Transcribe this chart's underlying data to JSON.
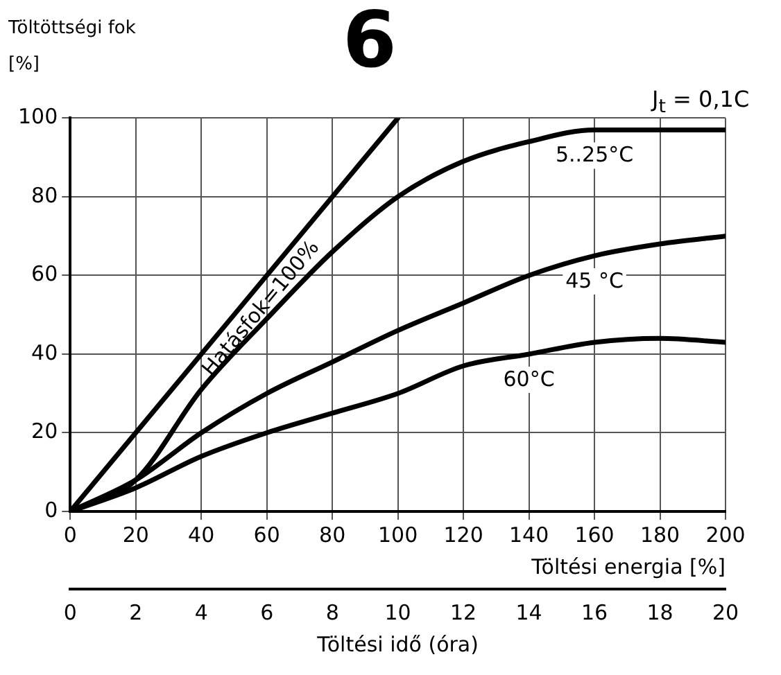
{
  "chart_data": {
    "type": "line",
    "title": "6",
    "ylabel": "Töltöttségi fok [%]",
    "xlabel": "Töltési energia [%]",
    "x2label": "Töltési idő (óra)",
    "annotations": [
      "J$_{t}$ = 0,1C"
    ],
    "x": [
      0,
      20,
      40,
      60,
      80,
      100,
      120,
      140,
      160,
      180,
      200
    ],
    "series": [
      {
        "name": "Hatásfok=100%",
        "color": "#000000",
        "x": [
          0,
          100
        ],
        "values": [
          0,
          100
        ]
      },
      {
        "name": "5..25°C",
        "color": "#000000",
        "values": [
          0,
          8,
          31,
          49,
          66,
          80,
          89,
          94,
          97,
          97,
          97
        ]
      },
      {
        "name": "45 °C",
        "color": "#000000",
        "values": [
          0,
          8,
          20,
          30,
          38,
          46,
          53,
          60,
          65,
          68,
          70
        ]
      },
      {
        "name": "60°C",
        "color": "#000000",
        "values": [
          0,
          6,
          14,
          20,
          25,
          30,
          37,
          40,
          43,
          44,
          43
        ]
      }
    ],
    "xlim": [
      0,
      200
    ],
    "xticks": [
      0,
      20,
      40,
      60,
      80,
      100,
      120,
      140,
      160,
      180,
      200
    ],
    "x2lim": [
      0,
      20
    ],
    "x2ticks": [
      0,
      2,
      4,
      6,
      8,
      10,
      12,
      14,
      16,
      18,
      20
    ],
    "ylim": [
      0,
      100
    ],
    "yticks": [
      0,
      20,
      40,
      60,
      80,
      100
    ],
    "grid": true,
    "legend": false,
    "marker": "none",
    "line_style": "solid"
  }
}
